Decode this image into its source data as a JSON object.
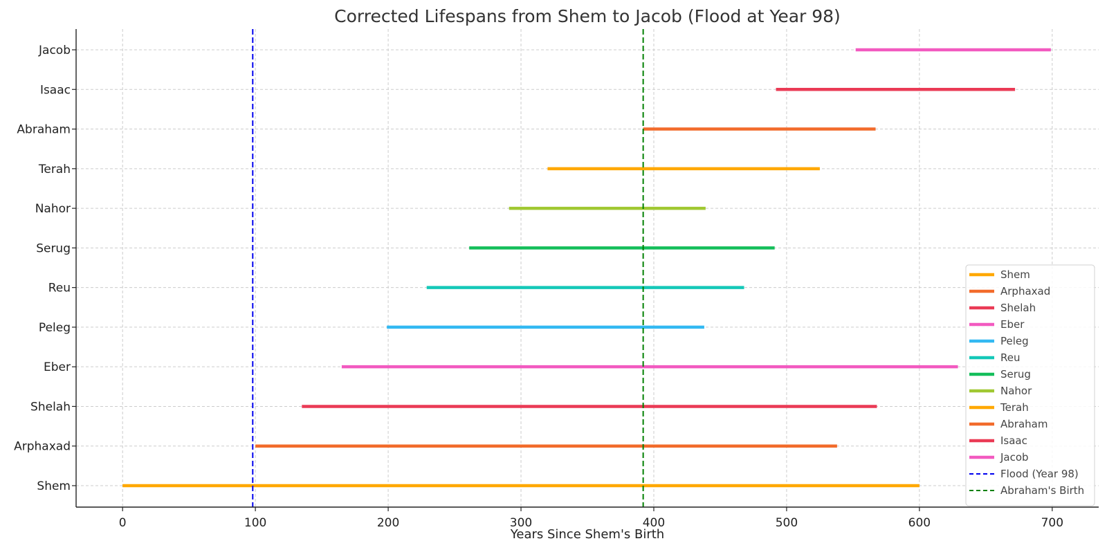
{
  "chart_data": {
    "type": "gantt-line",
    "title": "Corrected Lifespans from Shem to Jacob (Flood at Year 98)",
    "xlabel": "Years Since Shem's Birth",
    "ylabel": "",
    "xlim": [
      -35,
      735
    ],
    "xticks": [
      0,
      100,
      200,
      300,
      400,
      500,
      600,
      700
    ],
    "grid": true,
    "legend_position": "lower-right",
    "series": [
      {
        "name": "Shem",
        "start": 0,
        "end": 600,
        "color": "#FFA800"
      },
      {
        "name": "Arphaxad",
        "start": 100,
        "end": 538,
        "color": "#F26B2B"
      },
      {
        "name": "Shelah",
        "start": 135,
        "end": 568,
        "color": "#EA3A55"
      },
      {
        "name": "Eber",
        "start": 165,
        "end": 629,
        "color": "#F25AC0"
      },
      {
        "name": "Peleg",
        "start": 199,
        "end": 438,
        "color": "#33B9F2"
      },
      {
        "name": "Reu",
        "start": 229,
        "end": 468,
        "color": "#14C8B8"
      },
      {
        "name": "Serug",
        "start": 261,
        "end": 491,
        "color": "#14BE5A"
      },
      {
        "name": "Nahor",
        "start": 291,
        "end": 439,
        "color": "#A0C832"
      },
      {
        "name": "Terah",
        "start": 320,
        "end": 525,
        "color": "#FFA800"
      },
      {
        "name": "Abraham",
        "start": 392,
        "end": 567,
        "color": "#F26B2B"
      },
      {
        "name": "Isaac",
        "start": 492,
        "end": 672,
        "color": "#EA3A55"
      },
      {
        "name": "Jacob",
        "start": 552,
        "end": 699,
        "color": "#F25AC0"
      }
    ],
    "reference_lines": [
      {
        "name": "Flood (Year 98)",
        "x": 98,
        "color": "#0000EE"
      },
      {
        "name": "Abraham's Birth",
        "x": 392,
        "color": "#008000"
      }
    ]
  }
}
